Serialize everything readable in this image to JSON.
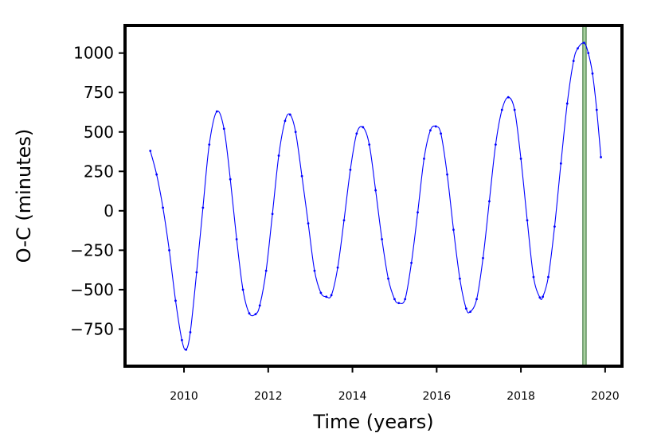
{
  "chart_data": {
    "type": "line",
    "title": "",
    "xlabel": "Time (years)",
    "ylabel": "O-C (minutes)",
    "xlim": [
      2008.6,
      2020.4
    ],
    "ylim": [
      -985,
      1175
    ],
    "x_ticks": [
      2010,
      2012,
      2014,
      2016,
      2018,
      2020
    ],
    "y_ticks": [
      1000,
      750,
      500,
      250,
      0,
      -250,
      -500,
      -750
    ],
    "y_tick_labels": [
      "1000",
      "750",
      "500",
      "250",
      "0",
      "−250",
      "−500",
      "−750"
    ],
    "grid": false,
    "legend": "none",
    "series": [
      {
        "color": "#0000ff",
        "marker": "dot",
        "x": [
          2009.2,
          2009.35,
          2009.5,
          2009.65,
          2009.8,
          2009.95,
          2010.05,
          2010.15,
          2010.3,
          2010.45,
          2010.6,
          2010.78,
          2010.95,
          2011.1,
          2011.25,
          2011.4,
          2011.55,
          2011.7,
          2011.8,
          2011.95,
          2012.1,
          2012.25,
          2012.4,
          2012.52,
          2012.65,
          2012.8,
          2012.95,
          2013.1,
          2013.25,
          2013.38,
          2013.5,
          2013.65,
          2013.8,
          2013.95,
          2014.1,
          2014.25,
          2014.4,
          2014.55,
          2014.7,
          2014.85,
          2015.0,
          2015.1,
          2015.25,
          2015.4,
          2015.55,
          2015.7,
          2015.85,
          2015.98,
          2016.1,
          2016.25,
          2016.4,
          2016.55,
          2016.7,
          2016.8,
          2016.95,
          2017.1,
          2017.25,
          2017.4,
          2017.55,
          2017.7,
          2017.85,
          2018.0,
          2018.15,
          2018.3,
          2018.45,
          2018.52,
          2018.65,
          2018.8,
          2018.95,
          2019.1,
          2019.25,
          2019.35,
          2019.5,
          2019.6,
          2019.7,
          2019.8,
          2019.9
        ],
        "y": [
          380,
          230,
          20,
          -250,
          -570,
          -820,
          -880,
          -770,
          -390,
          20,
          420,
          630,
          520,
          200,
          -180,
          -500,
          -650,
          -655,
          -600,
          -380,
          -20,
          350,
          570,
          610,
          500,
          220,
          -80,
          -380,
          -520,
          -545,
          -535,
          -360,
          -60,
          260,
          490,
          530,
          420,
          130,
          -180,
          -430,
          -560,
          -585,
          -560,
          -330,
          -10,
          330,
          510,
          535,
          490,
          230,
          -120,
          -430,
          -620,
          -640,
          -560,
          -300,
          60,
          420,
          640,
          720,
          640,
          330,
          -60,
          -420,
          -550,
          -545,
          -420,
          -100,
          300,
          680,
          950,
          1030,
          1065,
          1000,
          870,
          640,
          340
        ]
      }
    ],
    "vertical_band": {
      "x_start": 2019.47,
      "x_end": 2019.55,
      "color": "#a8cfa0"
    }
  }
}
